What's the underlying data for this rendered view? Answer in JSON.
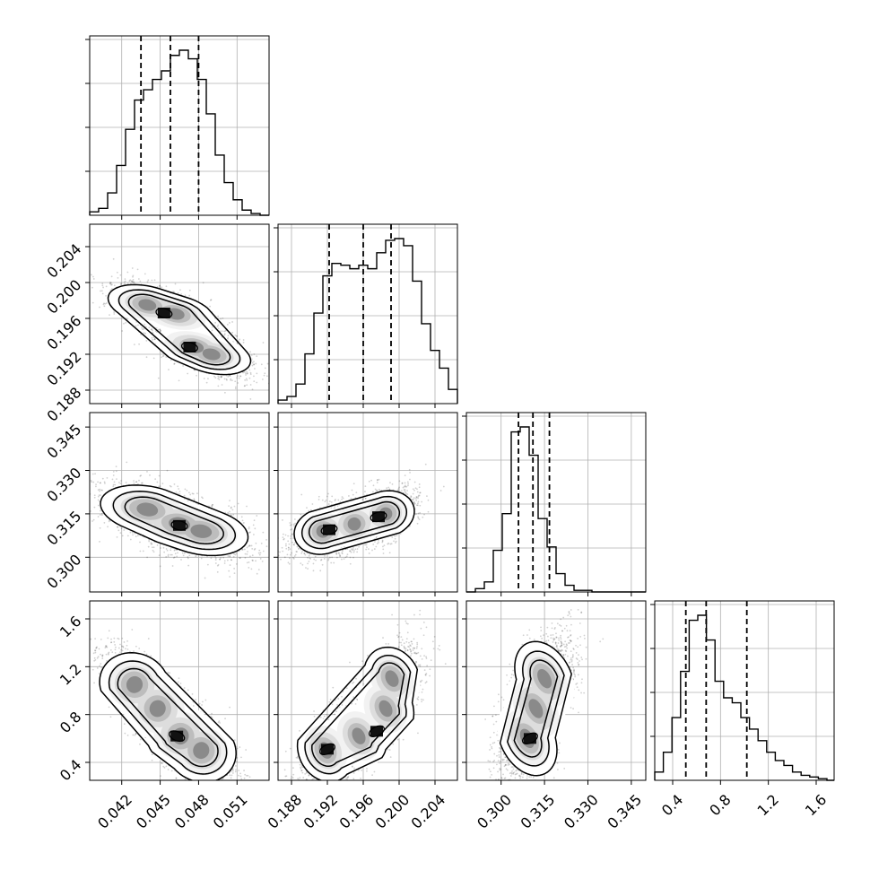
{
  "figure": {
    "type": "corner-plot",
    "background": "#ffffff",
    "grid": true
  },
  "chart_data": {
    "type": "corner",
    "parameters": [
      {
        "range": [
          0.0395,
          0.0535
        ],
        "ticks": [
          0.042,
          0.045,
          0.048,
          0.051
        ],
        "tick_labels": [
          "0.042",
          "0.045",
          "0.048",
          "0.051"
        ]
      },
      {
        "range": [
          0.1865,
          0.2065
        ],
        "ticks": [
          0.188,
          0.192,
          0.196,
          0.2,
          0.204
        ],
        "tick_labels": [
          "0.188",
          "0.192",
          "0.196",
          "0.200",
          "0.204"
        ]
      },
      {
        "range": [
          0.288,
          0.35
        ],
        "ticks": [
          0.3,
          0.315,
          0.33,
          0.345
        ],
        "tick_labels": [
          "0.300",
          "0.315",
          "0.330",
          "0.345"
        ]
      },
      {
        "range": [
          0.25,
          1.75
        ],
        "ticks": [
          0.4,
          0.8,
          1.2,
          1.6
        ],
        "tick_labels": [
          "0.4",
          "0.8",
          "1.2",
          "1.6"
        ]
      }
    ],
    "histograms": [
      {
        "quantiles": [
          0.0435,
          0.0458,
          0.048
        ],
        "edges_start": 0.0395,
        "bin_width": 0.0007,
        "counts": [
          2,
          4,
          13,
          29,
          50,
          67,
          73,
          79,
          84,
          93,
          96,
          91,
          79,
          59,
          35,
          19,
          9,
          3,
          1,
          0
        ]
      },
      {
        "quantiles": [
          0.1922,
          0.196,
          0.1991
        ],
        "edges_start": 0.1865,
        "bin_width": 0.001,
        "counts": [
          2,
          4,
          11,
          28,
          51,
          72,
          79,
          78,
          76,
          78,
          76,
          85,
          92,
          93,
          89,
          69,
          45,
          30,
          20,
          8,
          4,
          1
        ]
      },
      {
        "quantiles": [
          0.306,
          0.311,
          0.3167
        ],
        "edges_start": 0.288,
        "bin_width": 0.0031,
        "counts": [
          0,
          2,
          6,
          25,
          47,
          96,
          99,
          82,
          44,
          27,
          11,
          4,
          1,
          1,
          0,
          0,
          0,
          0,
          0,
          0
        ]
      },
      {
        "quantiles": [
          0.51,
          0.68,
          1.02
        ],
        "edges_start": 0.25,
        "bin_width": 0.072,
        "counts": [
          5,
          17,
          38,
          66,
          97,
          100,
          85,
          60,
          50,
          47,
          38,
          31,
          24,
          17,
          12,
          9,
          5,
          3,
          2,
          1,
          0
        ]
      }
    ],
    "pairs": [
      {
        "x": 0,
        "y": 1,
        "points": [
          [
            0.044,
            0.1975
          ],
          [
            0.0462,
            0.1965
          ],
          [
            0.0477,
            0.1928
          ],
          [
            0.049,
            0.192
          ]
        ],
        "peaks": [
          [
            0.0453,
            0.1966
          ],
          [
            0.0473,
            0.1928
          ]
        ],
        "spread": [
          0.00135,
          0.0011
        ],
        "corr": -0.62
      },
      {
        "x": 0,
        "y": 2,
        "points": [
          [
            0.044,
            0.3165
          ],
          [
            0.0465,
            0.3115
          ],
          [
            0.0482,
            0.309
          ]
        ],
        "peaks": [
          [
            0.0465,
            0.311
          ]
        ],
        "spread": [
          0.0016,
          0.0038
        ],
        "corr": -0.45
      },
      {
        "x": 1,
        "y": 2,
        "points": [
          [
            0.1915,
            0.309
          ],
          [
            0.195,
            0.3115
          ],
          [
            0.1985,
            0.315
          ]
        ],
        "peaks": [
          [
            0.1922,
            0.3095
          ],
          [
            0.1977,
            0.314
          ]
        ],
        "spread": [
          0.0014,
          0.0036
        ],
        "corr": 0.4
      },
      {
        "x": 0,
        "y": 3,
        "points": [
          [
            0.043,
            1.05
          ],
          [
            0.0448,
            0.85
          ],
          [
            0.0466,
            0.62
          ],
          [
            0.0482,
            0.5
          ]
        ],
        "peaks": [
          [
            0.0463,
            0.62
          ]
        ],
        "spread": [
          0.0012,
          0.14
        ],
        "corr": -0.6
      },
      {
        "x": 1,
        "y": 3,
        "points": [
          [
            0.1918,
            0.5
          ],
          [
            0.1955,
            0.62
          ],
          [
            0.1985,
            0.85
          ],
          [
            0.1992,
            1.1
          ]
        ],
        "peaks": [
          [
            0.192,
            0.51
          ],
          [
            0.1975,
            0.66
          ]
        ],
        "spread": [
          0.0013,
          0.14
        ],
        "corr": 0.55
      },
      {
        "x": 2,
        "y": 3,
        "points": [
          [
            0.309,
            0.6
          ],
          [
            0.312,
            0.85
          ],
          [
            0.315,
            1.1
          ]
        ],
        "peaks": [
          [
            0.31,
            0.6
          ]
        ],
        "spread": [
          0.004,
          0.16
        ],
        "corr": 0.45
      }
    ]
  }
}
